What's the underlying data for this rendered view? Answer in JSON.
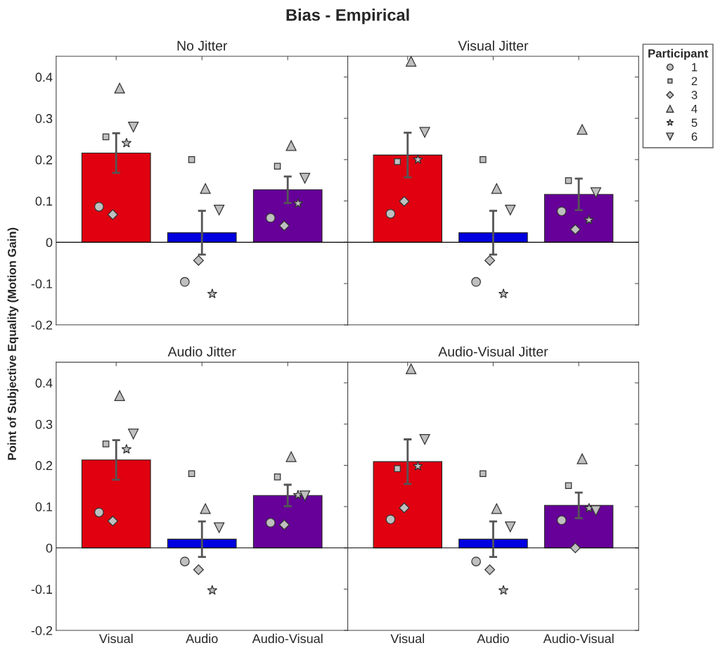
{
  "chart_data": [
    {
      "type": "bar",
      "title": "No Jitter",
      "ylabel": "Point of Subjective Equality (Motion Gain)",
      "annotations": [
        "Bias - Empirical"
      ],
      "categories": [
        "Visual",
        "Audio",
        "Audio-Visual"
      ],
      "ylim": [
        -0.2,
        0.45
      ],
      "yticks": [
        -0.2,
        -0.1,
        0,
        0.1,
        0.2,
        0.3,
        0.4
      ],
      "tick_labels": "y",
      "ref_lines": [
        {
          "axis": "y",
          "value": 0,
          "color": "#000000"
        }
      ],
      "series": [
        {
          "colors": [
            "#e00010",
            "#0000e0",
            "#660099"
          ],
          "values": [
            0.216,
            0.023,
            0.127
          ],
          "errors": [
            0.048,
            0.053,
            0.032
          ]
        },
        {
          "type": "scatter",
          "marker": "circle",
          "color": "#bfbfbf",
          "x": [
            "Visual",
            "Audio",
            "Audio-Visual"
          ],
          "values": [
            0.086,
            -0.096,
            0.059
          ]
        },
        {
          "type": "scatter",
          "marker": "square",
          "color": "#bfbfbf",
          "x": [
            "Visual",
            "Audio",
            "Audio-Visual"
          ],
          "values": [
            0.255,
            0.2,
            0.184
          ]
        },
        {
          "type": "scatter",
          "marker": "diamond",
          "color": "#bfbfbf",
          "x": [
            "Visual",
            "Audio",
            "Audio-Visual"
          ],
          "values": [
            0.067,
            -0.044,
            0.04
          ]
        },
        {
          "type": "scatter",
          "marker": "triangle",
          "color": "#bfbfbf",
          "x": [
            "Visual",
            "Audio",
            "Audio-Visual"
          ],
          "values": [
            0.373,
            0.13,
            0.234
          ]
        },
        {
          "type": "scatter",
          "marker": "star",
          "color": "#bfbfbf",
          "x": [
            "Visual",
            "Audio",
            "Audio-Visual"
          ],
          "values": [
            0.24,
            -0.125,
            0.094
          ]
        },
        {
          "type": "scatter",
          "marker": "triangle_down",
          "color": "#bfbfbf",
          "x": [
            "Visual",
            "Audio",
            "Audio-Visual"
          ],
          "values": [
            0.279,
            0.078,
            0.155
          ]
        }
      ]
    },
    {
      "type": "bar",
      "title": "Visual Jitter",
      "legend": "right",
      "legend_title": "Participant",
      "categories": [
        "Visual",
        "Audio",
        "Audio-Visual"
      ],
      "ylim": [
        -0.2,
        0.45
      ],
      "yticks": [
        -0.2,
        -0.1,
        0,
        0.1,
        0.2,
        0.3,
        0.4
      ],
      "tick_labels": false,
      "ref_lines": [
        {
          "axis": "y",
          "value": 0,
          "color": "#000000"
        }
      ],
      "series": [
        {
          "colors": [
            "#e00010",
            "#0000e0",
            "#660099"
          ],
          "values": [
            0.211,
            0.023,
            0.116
          ],
          "errors": [
            0.054,
            0.053,
            0.038
          ]
        },
        {
          "type": "scatter",
          "name": "1",
          "marker": "circle",
          "color": "#bfbfbf",
          "x": [
            "Visual",
            "Audio",
            "Audio-Visual"
          ],
          "values": [
            0.069,
            -0.096,
            0.075
          ]
        },
        {
          "type": "scatter",
          "name": "2",
          "marker": "square",
          "color": "#bfbfbf",
          "x": [
            "Visual",
            "Audio",
            "Audio-Visual"
          ],
          "values": [
            0.195,
            0.2,
            0.149
          ]
        },
        {
          "type": "scatter",
          "name": "3",
          "marker": "diamond",
          "color": "#bfbfbf",
          "x": [
            "Visual",
            "Audio",
            "Audio-Visual"
          ],
          "values": [
            0.099,
            -0.044,
            0.031
          ]
        },
        {
          "type": "scatter",
          "name": "4",
          "marker": "triangle",
          "color": "#bfbfbf",
          "x": [
            "Visual",
            "Audio",
            "Audio-Visual"
          ],
          "values": [
            0.438,
            0.13,
            0.273
          ]
        },
        {
          "type": "scatter",
          "name": "5",
          "marker": "star",
          "color": "#bfbfbf",
          "x": [
            "Visual",
            "Audio",
            "Audio-Visual"
          ],
          "values": [
            0.2,
            -0.125,
            0.054
          ]
        },
        {
          "type": "scatter",
          "name": "6",
          "marker": "triangle_down",
          "color": "#bfbfbf",
          "x": [
            "Visual",
            "Audio",
            "Audio-Visual"
          ],
          "values": [
            0.266,
            0.078,
            0.12
          ]
        }
      ]
    },
    {
      "type": "bar",
      "title": "Audio Jitter",
      "categories": [
        "Visual",
        "Audio",
        "Audio-Visual"
      ],
      "ylim": [
        -0.2,
        0.45
      ],
      "yticks": [
        -0.2,
        -0.1,
        0,
        0.1,
        0.2,
        0.3,
        0.4
      ],
      "ref_lines": [
        {
          "axis": "y",
          "value": 0,
          "color": "#000000"
        }
      ],
      "series": [
        {
          "colors": [
            "#e00010",
            "#0000e0",
            "#660099"
          ],
          "values": [
            0.213,
            0.021,
            0.127
          ],
          "errors": [
            0.048,
            0.043,
            0.026
          ]
        },
        {
          "type": "scatter",
          "marker": "circle",
          "color": "#bfbfbf",
          "x": [
            "Visual",
            "Audio",
            "Audio-Visual"
          ],
          "values": [
            0.086,
            -0.033,
            0.061
          ]
        },
        {
          "type": "scatter",
          "marker": "square",
          "color": "#bfbfbf",
          "x": [
            "Visual",
            "Audio",
            "Audio-Visual"
          ],
          "values": [
            0.252,
            0.18,
            0.172
          ]
        },
        {
          "type": "scatter",
          "marker": "diamond",
          "color": "#bfbfbf",
          "x": [
            "Visual",
            "Audio",
            "Audio-Visual"
          ],
          "values": [
            0.065,
            -0.053,
            0.056
          ]
        },
        {
          "type": "scatter",
          "marker": "triangle",
          "color": "#bfbfbf",
          "x": [
            "Visual",
            "Audio",
            "Audio-Visual"
          ],
          "values": [
            0.369,
            0.095,
            0.221
          ]
        },
        {
          "type": "scatter",
          "marker": "star",
          "color": "#bfbfbf",
          "x": [
            "Visual",
            "Audio",
            "Audio-Visual"
          ],
          "values": [
            0.239,
            -0.103,
            0.128
          ]
        },
        {
          "type": "scatter",
          "marker": "triangle_down",
          "color": "#bfbfbf",
          "x": [
            "Visual",
            "Audio",
            "Audio-Visual"
          ],
          "values": [
            0.276,
            0.049,
            0.126
          ]
        }
      ]
    },
    {
      "type": "bar",
      "title": "Audio-Visual Jitter",
      "categories": [
        "Visual",
        "Audio",
        "Audio-Visual"
      ],
      "ylim": [
        -0.2,
        0.45
      ],
      "yticks": [
        -0.2,
        -0.1,
        0,
        0.1,
        0.2,
        0.3,
        0.4
      ],
      "tick_labels": "x",
      "ref_lines": [
        {
          "axis": "y",
          "value": 0,
          "color": "#000000"
        }
      ],
      "series": [
        {
          "colors": [
            "#e00010",
            "#0000e0",
            "#660099"
          ],
          "values": [
            0.209,
            0.021,
            0.103
          ],
          "errors": [
            0.054,
            0.043,
            0.031
          ]
        },
        {
          "type": "scatter",
          "marker": "circle",
          "color": "#bfbfbf",
          "x": [
            "Visual",
            "Audio",
            "Audio-Visual"
          ],
          "values": [
            0.069,
            -0.033,
            0.067
          ]
        },
        {
          "type": "scatter",
          "marker": "square",
          "color": "#bfbfbf",
          "x": [
            "Visual",
            "Audio",
            "Audio-Visual"
          ],
          "values": [
            0.192,
            0.18,
            0.151
          ]
        },
        {
          "type": "scatter",
          "marker": "diamond",
          "color": "#bfbfbf",
          "x": [
            "Visual",
            "Audio",
            "Audio-Visual"
          ],
          "values": [
            0.097,
            -0.053,
            0.0
          ]
        },
        {
          "type": "scatter",
          "marker": "triangle",
          "color": "#bfbfbf",
          "x": [
            "Visual",
            "Audio",
            "Audio-Visual"
          ],
          "values": [
            0.434,
            0.095,
            0.216
          ]
        },
        {
          "type": "scatter",
          "marker": "star",
          "color": "#bfbfbf",
          "x": [
            "Visual",
            "Audio",
            "Audio-Visual"
          ],
          "values": [
            0.198,
            -0.103,
            0.096
          ]
        },
        {
          "type": "scatter",
          "marker": "triangle_down",
          "color": "#bfbfbf",
          "x": [
            "Visual",
            "Audio",
            "Audio-Visual"
          ],
          "values": [
            0.263,
            0.051,
            0.09
          ]
        }
      ]
    }
  ]
}
